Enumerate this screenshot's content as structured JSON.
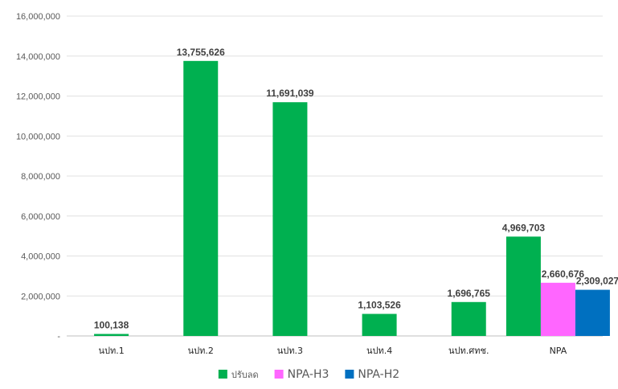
{
  "chart_data": {
    "type": "bar",
    "title": "",
    "xlabel": "",
    "ylabel": "",
    "ylim": [
      0,
      16000000
    ],
    "yticks": [
      0,
      2000000,
      4000000,
      6000000,
      8000000,
      10000000,
      12000000,
      14000000,
      16000000
    ],
    "ytick_labels": [
      "-",
      "2,000,000",
      "4,000,000",
      "6,000,000",
      "8,000,000",
      "10,000,000",
      "12,000,000",
      "14,000,000",
      "16,000,000"
    ],
    "grid": true,
    "legend_position": "bottom",
    "categories": [
      "นปท.1",
      "นปท.2",
      "นปท.3",
      "นปท.4",
      "นปท.ศทช.",
      "NPA"
    ],
    "series": [
      {
        "name": "ปรับลด",
        "color": "#00b050",
        "values": [
          100138,
          13755626,
          11691039,
          1103526,
          1696765,
          4969703
        ],
        "labels": [
          "100,138",
          "13,755,626",
          "11,691,039",
          "1,103,526",
          "1,696,765",
          "4,969,703"
        ]
      },
      {
        "name": "NPA-H3",
        "color": "#ff66ff",
        "values": [
          null,
          null,
          null,
          null,
          null,
          2660676
        ],
        "labels": [
          "",
          "",
          "",
          "",
          "",
          "2,660,676"
        ]
      },
      {
        "name": "NPA-H2",
        "color": "#0070c0",
        "values": [
          null,
          null,
          null,
          null,
          null,
          2309027
        ],
        "labels": [
          "",
          "",
          "",
          "",
          "",
          "2,309,027"
        ]
      }
    ]
  }
}
